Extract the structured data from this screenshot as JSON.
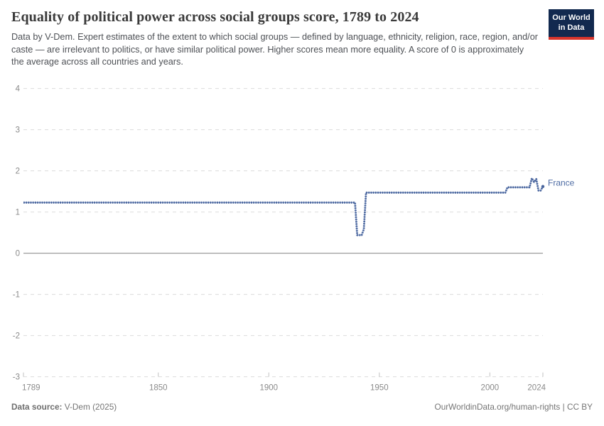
{
  "header": {
    "title": "Equality of political power across social groups score, 1789 to 2024",
    "subtitle": "Data by V-Dem. Expert estimates of the extent to which social groups — defined by language, ethnicity, religion, race, region, and/or caste — are irrelevant to politics, or have similar political power. Higher scores mean more equality. A score of 0 is approximately the average across all countries and years.",
    "logo": {
      "line1": "Our World",
      "line2": "in Data",
      "bg_color": "#12294f",
      "accent_color": "#d7352c"
    }
  },
  "chart_data": {
    "type": "line",
    "title": "Equality of political power across social groups score, 1789 to 2024",
    "xlabel": "",
    "ylabel": "",
    "xlim": [
      1789,
      2024
    ],
    "ylim": [
      -3,
      4
    ],
    "x_ticks": [
      1789,
      1850,
      1900,
      1950,
      2000,
      2024
    ],
    "y_ticks": [
      4,
      3,
      2,
      1,
      0,
      -1,
      -2,
      -3
    ],
    "grid": "dashed horizontal gridlines, solid zero line",
    "legend_position": "end-of-line label",
    "series": [
      {
        "name": "France",
        "color": "#47639c",
        "color_light": "#94a8cc",
        "label_color": "#4d6ba3",
        "points": [
          [
            1789,
            1.23
          ],
          [
            1938,
            1.23
          ],
          [
            1939,
            1.23
          ],
          [
            1940,
            0.44
          ],
          [
            1942,
            0.44
          ],
          [
            1943,
            0.58
          ],
          [
            1944,
            1.47
          ],
          [
            2007,
            1.47
          ],
          [
            2008,
            1.6
          ],
          [
            2018,
            1.6
          ],
          [
            2019,
            1.82
          ],
          [
            2020,
            1.73
          ],
          [
            2021,
            1.8
          ],
          [
            2022,
            1.52
          ],
          [
            2023,
            1.52
          ],
          [
            2024,
            1.62
          ]
        ]
      }
    ],
    "axis_colors": {
      "gridline": "#dcdcdc",
      "zero_line": "#9c9c9c",
      "tick": "#c2c2c2",
      "label": "#8a8a8a"
    }
  },
  "footer": {
    "source_label": "Data source:",
    "source_value": " V-Dem (2025)",
    "right": "OurWorldinData.org/human-rights | CC BY"
  }
}
